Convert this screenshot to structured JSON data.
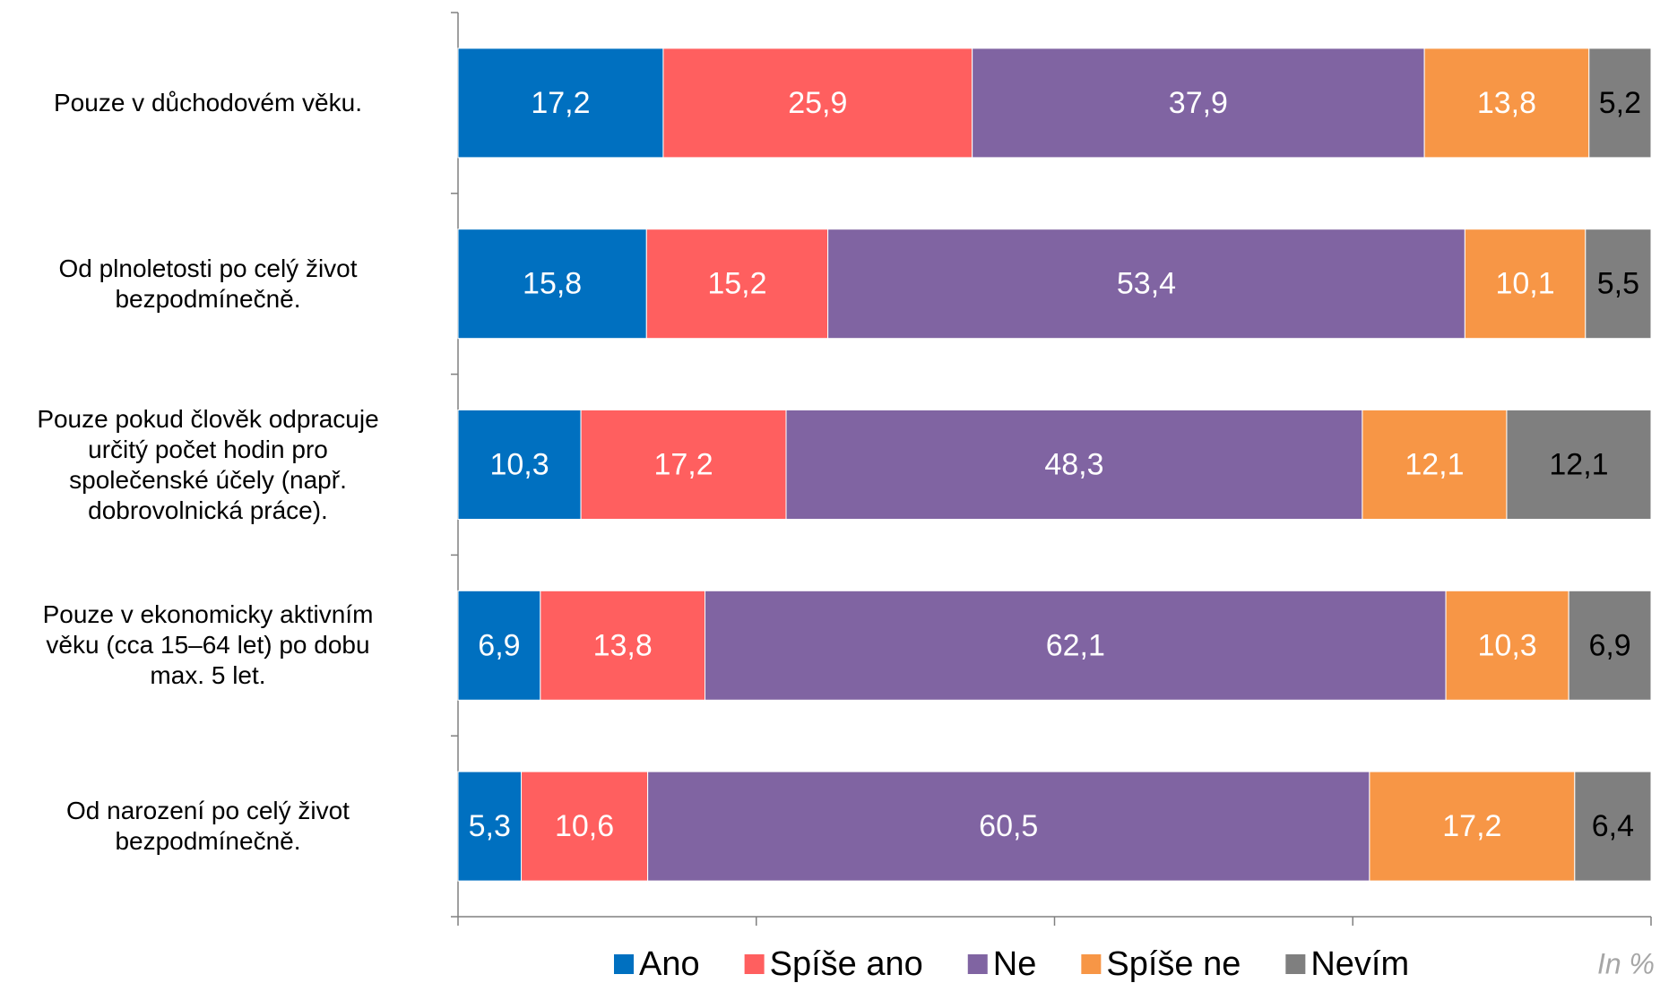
{
  "chart_data": {
    "type": "stacked_barh",
    "categories": [
      "Pouze v důchodovém věku.",
      "Od plnoletosti po celý život\nbezpodmínečně.",
      "Pouze pokud člověk odpracuje\nurčitý počet hodin pro\nspolečenské účely (např.\ndobrovolnická práce).",
      "Pouze v ekonomicky aktivním\nvěku (cca 15–64 let) po dobu\nmax. 5 let.",
      "Od narození po celý život\nbezpodmínečně."
    ],
    "series": [
      {
        "name": "Ano",
        "color": "#0070c0",
        "values": [
          17.2,
          15.8,
          10.3,
          6.9,
          5.3
        ],
        "value_labels": [
          "17,2",
          "15,8",
          "10,3",
          "6,9",
          "5,3"
        ]
      },
      {
        "name": "Spíše ano",
        "color": "#ff5f5f",
        "values": [
          25.9,
          15.2,
          17.2,
          13.8,
          10.6
        ],
        "value_labels": [
          "25,9",
          "15,2",
          "17,2",
          "13,8",
          "10,6"
        ]
      },
      {
        "name": "Ne",
        "color": "#8064a2",
        "values": [
          37.9,
          53.4,
          48.3,
          62.1,
          60.5
        ],
        "value_labels": [
          "37,9",
          "53,4",
          "48,3",
          "62,1",
          "60,5"
        ]
      },
      {
        "name": "Spíše ne",
        "color": "#f79646",
        "values": [
          13.8,
          10.1,
          12.1,
          10.3,
          17.2
        ],
        "value_labels": [
          "13,8",
          "10,1",
          "12,1",
          "10,3",
          "17,2"
        ]
      },
      {
        "name": "Nevím",
        "color": "#7f7f7f",
        "values": [
          5.2,
          5.5,
          12.1,
          6.9,
          6.4
        ],
        "value_labels": [
          "5,2",
          "5,5",
          "12,1",
          "6,9",
          "6,4"
        ]
      }
    ],
    "xlim": [
      0,
      100
    ],
    "xticks": [
      0,
      25,
      50,
      75,
      100
    ],
    "annotation": "In %",
    "legend": "bottom"
  }
}
